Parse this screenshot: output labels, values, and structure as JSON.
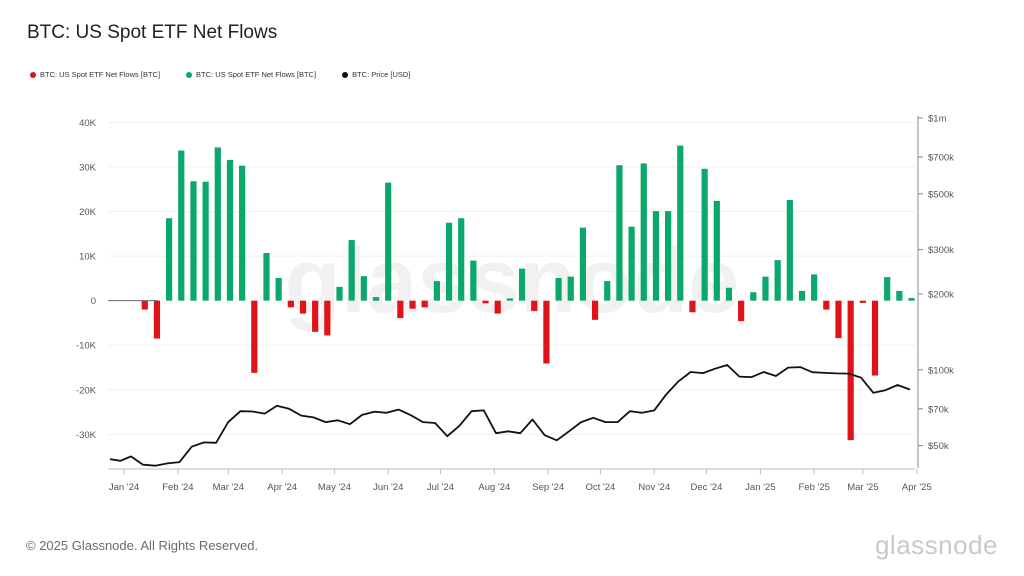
{
  "title": "BTC: US Spot ETF Net Flows",
  "legend": [
    {
      "label": "BTC: US Spot ETF Net Flows [BTC]",
      "color": "#e0131b"
    },
    {
      "label": "BTC: US Spot ETF Net Flows [BTC]",
      "color": "#0aa86a"
    },
    {
      "label": "BTC: Price [USD]",
      "color": "#111111"
    }
  ],
  "watermark": "glassnode",
  "footer": {
    "copyright": "© 2025 Glassnode. All Rights Reserved.",
    "brand": "glassnode"
  },
  "colors": {
    "positive": "#0aa86a",
    "negative": "#e0131b",
    "price": "#111111",
    "grid": "#efefef"
  },
  "chart_data": {
    "type": "bar",
    "title": "BTC: US Spot ETF Net Flows",
    "y_left": {
      "ticks": [
        40000,
        30000,
        20000,
        10000,
        0,
        -10000,
        -20000,
        -30000
      ],
      "tick_labels": [
        "40K",
        "30K",
        "20K",
        "10K",
        "0",
        "-10K",
        "-20K",
        "-30K"
      ],
      "range": [
        -38000,
        41000
      ]
    },
    "y_right": {
      "scale": "log",
      "ticks": [
        1000000,
        700000,
        500000,
        300000,
        200000,
        100000,
        70000,
        50000
      ],
      "tick_labels": [
        "$1m",
        "$700k",
        "$500k",
        "$300k",
        "$200k",
        "$100k",
        "$70k",
        "$50k"
      ],
      "range": [
        40000,
        1000000
      ]
    },
    "x_labels": [
      "Jan '24",
      "Feb '24",
      "Mar '24",
      "Apr '24",
      "May '24",
      "Jun '24",
      "Jul '24",
      "Aug '24",
      "Sep '24",
      "Oct '24",
      "Nov '24",
      "Dec '24",
      "Jan '25",
      "Feb '25",
      "Mar '25",
      "Apr '25"
    ],
    "x_range": [
      "2024-01-01",
      "2025-04-08"
    ],
    "grid": true,
    "bars": [
      {
        "date": "2024-01-14",
        "value": 0
      },
      {
        "date": "2024-01-21",
        "value": -2000
      },
      {
        "date": "2024-01-28",
        "value": -8500
      },
      {
        "date": "2024-02-04",
        "value": 18500
      },
      {
        "date": "2024-02-11",
        "value": 33700
      },
      {
        "date": "2024-02-18",
        "value": 26800
      },
      {
        "date": "2024-02-25",
        "value": 26700
      },
      {
        "date": "2024-03-03",
        "value": 34400
      },
      {
        "date": "2024-03-10",
        "value": 31600
      },
      {
        "date": "2024-03-17",
        "value": 30300
      },
      {
        "date": "2024-03-24",
        "value": -16200
      },
      {
        "date": "2024-03-31",
        "value": 10700
      },
      {
        "date": "2024-04-07",
        "value": 5100
      },
      {
        "date": "2024-04-14",
        "value": -1500
      },
      {
        "date": "2024-04-21",
        "value": -2900
      },
      {
        "date": "2024-04-28",
        "value": -7000
      },
      {
        "date": "2024-05-05",
        "value": -7800
      },
      {
        "date": "2024-05-12",
        "value": 3100
      },
      {
        "date": "2024-05-19",
        "value": 13600
      },
      {
        "date": "2024-05-26",
        "value": 5500
      },
      {
        "date": "2024-06-02",
        "value": 800
      },
      {
        "date": "2024-06-09",
        "value": 26500
      },
      {
        "date": "2024-06-16",
        "value": -3900
      },
      {
        "date": "2024-06-23",
        "value": -1800
      },
      {
        "date": "2024-06-30",
        "value": -1500
      },
      {
        "date": "2024-07-07",
        "value": 4400
      },
      {
        "date": "2024-07-14",
        "value": 17500
      },
      {
        "date": "2024-07-21",
        "value": 18500
      },
      {
        "date": "2024-07-28",
        "value": 9000
      },
      {
        "date": "2024-08-04",
        "value": -600
      },
      {
        "date": "2024-08-11",
        "value": -2900
      },
      {
        "date": "2024-08-18",
        "value": 500
      },
      {
        "date": "2024-08-25",
        "value": 7200
      },
      {
        "date": "2024-09-01",
        "value": -2300
      },
      {
        "date": "2024-09-08",
        "value": -14100
      },
      {
        "date": "2024-09-15",
        "value": 5100
      },
      {
        "date": "2024-09-22",
        "value": 5400
      },
      {
        "date": "2024-09-29",
        "value": 16400
      },
      {
        "date": "2024-10-06",
        "value": -4300
      },
      {
        "date": "2024-10-13",
        "value": 4400
      },
      {
        "date": "2024-10-20",
        "value": 30400
      },
      {
        "date": "2024-10-27",
        "value": 16600
      },
      {
        "date": "2024-11-03",
        "value": 30800
      },
      {
        "date": "2024-11-10",
        "value": 20100
      },
      {
        "date": "2024-11-17",
        "value": 20100
      },
      {
        "date": "2024-11-24",
        "value": 34800
      },
      {
        "date": "2024-12-01",
        "value": -2600
      },
      {
        "date": "2024-12-08",
        "value": 29600
      },
      {
        "date": "2024-12-15",
        "value": 22400
      },
      {
        "date": "2024-12-22",
        "value": 2900
      },
      {
        "date": "2024-12-29",
        "value": -4600
      },
      {
        "date": "2025-01-05",
        "value": 1900
      },
      {
        "date": "2025-01-12",
        "value": 5400
      },
      {
        "date": "2025-01-19",
        "value": 9100
      },
      {
        "date": "2025-01-26",
        "value": 22600
      },
      {
        "date": "2025-02-02",
        "value": 2200
      },
      {
        "date": "2025-02-09",
        "value": 5900
      },
      {
        "date": "2025-02-16",
        "value": -2000
      },
      {
        "date": "2025-02-23",
        "value": -8400
      },
      {
        "date": "2025-03-02",
        "value": -31300
      },
      {
        "date": "2025-03-09",
        "value": -500
      },
      {
        "date": "2025-03-16",
        "value": -16800
      },
      {
        "date": "2025-03-23",
        "value": 5300
      },
      {
        "date": "2025-03-30",
        "value": 2200
      },
      {
        "date": "2025-04-06",
        "value": 600
      }
    ],
    "price": [
      {
        "date": "2024-01-01",
        "value": 44200
      },
      {
        "date": "2024-01-07",
        "value": 43500
      },
      {
        "date": "2024-01-13",
        "value": 45300
      },
      {
        "date": "2024-01-20",
        "value": 42000
      },
      {
        "date": "2024-01-27",
        "value": 41600
      },
      {
        "date": "2024-02-03",
        "value": 42500
      },
      {
        "date": "2024-02-10",
        "value": 43000
      },
      {
        "date": "2024-02-17",
        "value": 49500
      },
      {
        "date": "2024-02-24",
        "value": 51500
      },
      {
        "date": "2024-03-02",
        "value": 51300
      },
      {
        "date": "2024-03-09",
        "value": 62000
      },
      {
        "date": "2024-03-16",
        "value": 68500
      },
      {
        "date": "2024-03-23",
        "value": 68300
      },
      {
        "date": "2024-03-30",
        "value": 67000
      },
      {
        "date": "2024-04-06",
        "value": 72000
      },
      {
        "date": "2024-04-13",
        "value": 70000
      },
      {
        "date": "2024-04-20",
        "value": 65800
      },
      {
        "date": "2024-04-27",
        "value": 64700
      },
      {
        "date": "2024-05-04",
        "value": 62000
      },
      {
        "date": "2024-05-11",
        "value": 63000
      },
      {
        "date": "2024-05-18",
        "value": 60800
      },
      {
        "date": "2024-05-25",
        "value": 66200
      },
      {
        "date": "2024-06-01",
        "value": 68200
      },
      {
        "date": "2024-06-08",
        "value": 67500
      },
      {
        "date": "2024-06-15",
        "value": 69500
      },
      {
        "date": "2024-06-22",
        "value": 66000
      },
      {
        "date": "2024-06-29",
        "value": 62000
      },
      {
        "date": "2024-07-06",
        "value": 61500
      },
      {
        "date": "2024-07-13",
        "value": 54500
      },
      {
        "date": "2024-07-20",
        "value": 60000
      },
      {
        "date": "2024-07-27",
        "value": 68500
      },
      {
        "date": "2024-08-03",
        "value": 69000
      },
      {
        "date": "2024-08-10",
        "value": 56000
      },
      {
        "date": "2024-08-17",
        "value": 57000
      },
      {
        "date": "2024-08-24",
        "value": 56000
      },
      {
        "date": "2024-08-31",
        "value": 63500
      },
      {
        "date": "2024-09-07",
        "value": 55000
      },
      {
        "date": "2024-09-14",
        "value": 52500
      },
      {
        "date": "2024-09-21",
        "value": 57000
      },
      {
        "date": "2024-09-28",
        "value": 62000
      },
      {
        "date": "2024-10-05",
        "value": 64500
      },
      {
        "date": "2024-10-12",
        "value": 62000
      },
      {
        "date": "2024-10-19",
        "value": 62000
      },
      {
        "date": "2024-10-26",
        "value": 68500
      },
      {
        "date": "2024-11-02",
        "value": 67500
      },
      {
        "date": "2024-11-09",
        "value": 69000
      },
      {
        "date": "2024-11-16",
        "value": 80000
      },
      {
        "date": "2024-11-23",
        "value": 90000
      },
      {
        "date": "2024-11-30",
        "value": 98000
      },
      {
        "date": "2024-12-07",
        "value": 97000
      },
      {
        "date": "2024-12-14",
        "value": 101000
      },
      {
        "date": "2024-12-21",
        "value": 104500
      },
      {
        "date": "2024-12-28",
        "value": 94000
      },
      {
        "date": "2025-01-04",
        "value": 93500
      },
      {
        "date": "2025-01-11",
        "value": 98000
      },
      {
        "date": "2025-01-18",
        "value": 94500
      },
      {
        "date": "2025-01-25",
        "value": 102000
      },
      {
        "date": "2025-02-01",
        "value": 102500
      },
      {
        "date": "2025-02-08",
        "value": 97800
      },
      {
        "date": "2025-02-15",
        "value": 97200
      },
      {
        "date": "2025-02-22",
        "value": 96800
      },
      {
        "date": "2025-03-01",
        "value": 96600
      },
      {
        "date": "2025-03-08",
        "value": 93000
      },
      {
        "date": "2025-03-15",
        "value": 81000
      },
      {
        "date": "2025-03-22",
        "value": 83000
      },
      {
        "date": "2025-03-29",
        "value": 87000
      },
      {
        "date": "2025-04-05",
        "value": 83500
      }
    ]
  }
}
